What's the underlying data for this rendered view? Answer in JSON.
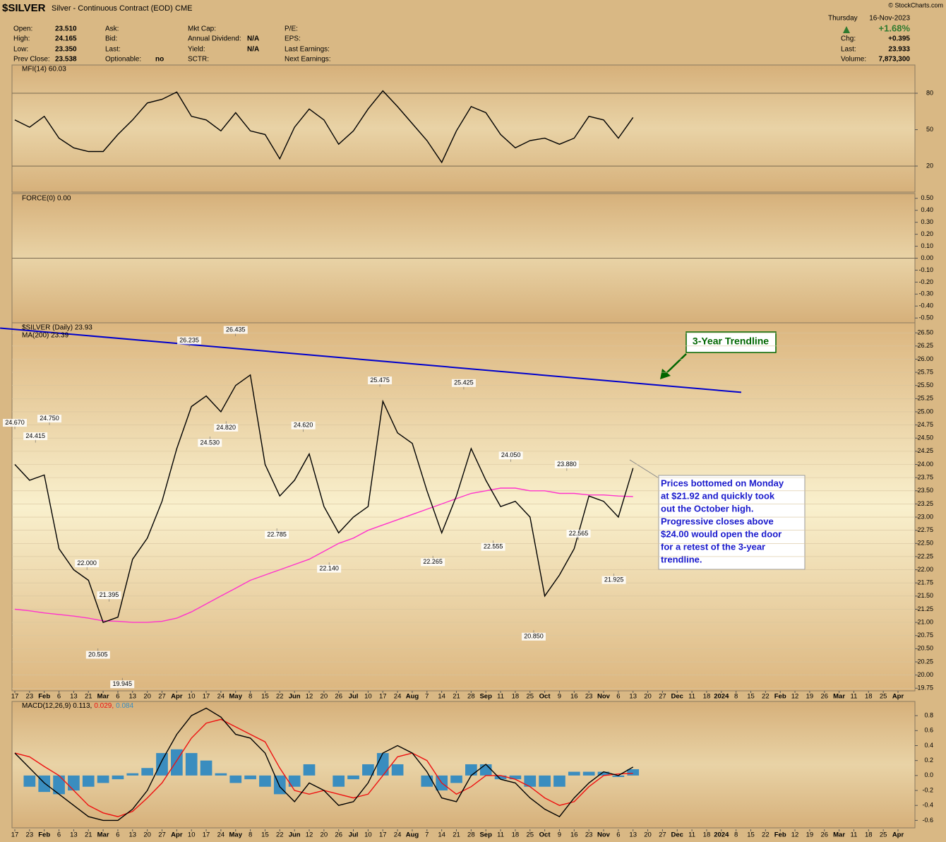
{
  "header": {
    "symbol": "$SILVER",
    "name": "Silver - Continuous Contract (EOD)",
    "exchange": "CME",
    "copyright": "© StockCharts.com",
    "day": "Thursday",
    "date": "16-Nov-2023",
    "change_pct": "+1.68%",
    "columns": [
      [
        {
          "label": "Open:",
          "value": "23.510"
        },
        {
          "label": "High:",
          "value": "24.165"
        },
        {
          "label": "Low:",
          "value": "23.350"
        },
        {
          "label": "Prev Close:",
          "value": "23.538"
        }
      ],
      [
        {
          "label": "Ask:"
        },
        {
          "label": "Bid:"
        },
        {
          "label": "Last:"
        },
        {
          "label": "Optionable:",
          "value": "no"
        }
      ],
      [
        {
          "label": "Mkt Cap:"
        },
        {
          "label": "Annual Dividend:",
          "value": "N/A"
        },
        {
          "label": "Yield:",
          "value": "N/A"
        },
        {
          "label": "SCTR:"
        }
      ],
      [
        {
          "label": "P/E:"
        },
        {
          "label": "EPS:"
        },
        {
          "label": "Last Earnings:"
        },
        {
          "label": "Next Earnings:"
        }
      ]
    ],
    "right": [
      {
        "label": "Chg:",
        "value": "+0.395"
      },
      {
        "label": "Last:",
        "value": "23.933"
      },
      {
        "label": "Volume:",
        "value": "7,873,300"
      }
    ]
  },
  "annotations": {
    "trendline_label": "3-Year Trendline",
    "note": [
      "Prices bottomed on Monday",
      "at $21.92 and quickly took",
      "out the October high.",
      "Progressive closes above",
      "$24.00 would open the door",
      "for a retest of the 3-year",
      "trendline."
    ]
  },
  "chart_data": [
    {
      "type": "line",
      "legend": [
        "MFI(14) 60.03"
      ],
      "ylim": [
        -1.5,
        103.3
      ],
      "yticks": [
        80,
        50,
        20
      ],
      "reference_lines": [
        80,
        20
      ],
      "series": [
        {
          "color": "#000000",
          "values": [
            58,
            52,
            61,
            43,
            35,
            32,
            32,
            46,
            58,
            72,
            75,
            81,
            61,
            58,
            49,
            64,
            49,
            46,
            26,
            52,
            67,
            58,
            38,
            49,
            67,
            82,
            69,
            55,
            41,
            23,
            49,
            69,
            64,
            46,
            35,
            41,
            43,
            38,
            43,
            61,
            58,
            43,
            60.03,
            null,
            null,
            null,
            null,
            null,
            null,
            null,
            null,
            null,
            null,
            null,
            null,
            null,
            null,
            null,
            null,
            null,
            null
          ]
        }
      ]
    },
    {
      "type": "line",
      "legend": [
        "FORCE(0) 0.00"
      ],
      "ylim": [
        -0.54,
        0.54
      ],
      "yticks": [
        {
          "value": 0.5,
          "label": "0.50"
        },
        {
          "value": 0.4,
          "label": "0.40"
        },
        {
          "value": 0.3,
          "label": "0.30"
        },
        {
          "value": 0.2,
          "label": "0.20"
        },
        {
          "value": 0.1,
          "label": "0.10"
        },
        {
          "value": 0,
          "label": "0.00"
        },
        {
          "value": -0.1,
          "label": "-0.10"
        },
        {
          "value": -0.2,
          "label": "-0.20"
        },
        {
          "value": -0.3,
          "label": "-0.30"
        },
        {
          "value": -0.4,
          "label": "-0.40"
        },
        {
          "value": -0.5,
          "label": "-0.50"
        }
      ],
      "reference_lines": [
        0
      ],
      "series": []
    },
    {
      "type": "line",
      "legend": [
        "$SILVER (Daily) 23.93",
        "MA(200) 23.39"
      ],
      "grid": true,
      "categories": [
        "17",
        "23",
        "Feb",
        "6",
        "13",
        "21",
        "Mar",
        "6",
        "13",
        "20",
        "27",
        "Apr",
        "10",
        "17",
        "24",
        "May",
        "8",
        "15",
        "22",
        "Jun",
        "12",
        "20",
        "26",
        "Jul",
        "10",
        "17",
        "24",
        "Aug",
        "7",
        "14",
        "21",
        "28",
        "Sep",
        "11",
        "18",
        "25",
        "Oct",
        "9",
        "16",
        "23",
        "Nov",
        "6",
        "13",
        "20",
        "27",
        "Dec",
        "11",
        "18",
        "2024",
        "8",
        "15",
        "22",
        "Feb",
        "12",
        "19",
        "26",
        "Mar",
        "11",
        "18",
        "25",
        "Apr"
      ],
      "ylim": [
        19.7,
        26.69
      ],
      "yticks": [
        {
          "value": 26.5,
          "label": "26.50"
        },
        26.25,
        {
          "value": 26,
          "label": "26.00"
        },
        25.75,
        {
          "value": 25.5,
          "label": "25.50"
        },
        25.25,
        {
          "value": 25,
          "label": "25.00"
        },
        24.75,
        {
          "value": 24.5,
          "label": "24.50"
        },
        24.25,
        {
          "value": 24,
          "label": "24.00"
        },
        23.75,
        {
          "value": 23.5,
          "label": "23.50"
        },
        23.25,
        {
          "value": 23,
          "label": "23.00"
        },
        22.75,
        {
          "value": 22.5,
          "label": "22.50"
        },
        22.25,
        {
          "value": 22,
          "label": "22.00"
        },
        21.75,
        {
          "value": 21.5,
          "label": "21.50"
        },
        21.25,
        {
          "value": 21,
          "label": "21.00"
        },
        20.75,
        {
          "value": 20.5,
          "label": "20.50"
        },
        20.25,
        {
          "value": 20,
          "label": "20.00"
        },
        19.75
      ],
      "series": [
        {
          "color": "#000000",
          "values": [
            24.0,
            23.7,
            23.8,
            22.4,
            22.0,
            21.8,
            21.0,
            21.1,
            22.2,
            22.6,
            23.3,
            24.3,
            25.1,
            25.3,
            25.0,
            25.5,
            25.7,
            24.0,
            23.4,
            23.7,
            24.2,
            23.2,
            22.7,
            23.0,
            23.2,
            25.2,
            24.6,
            24.4,
            23.5,
            22.7,
            23.4,
            24.3,
            23.7,
            23.2,
            23.3,
            23.0,
            21.5,
            21.9,
            22.4,
            23.4,
            23.3,
            23.0,
            23.93,
            null,
            null,
            null,
            null,
            null,
            null,
            null,
            null,
            null,
            null,
            null,
            null,
            null,
            null,
            null,
            null,
            null,
            null
          ]
        },
        {
          "color": "#ff33cc",
          "values": [
            21.25,
            21.22,
            21.18,
            21.15,
            21.12,
            21.08,
            21.03,
            21.02,
            21.0,
            21.0,
            21.02,
            21.08,
            21.2,
            21.35,
            21.5,
            21.65,
            21.8,
            21.9,
            22.0,
            22.1,
            22.2,
            22.35,
            22.5,
            22.6,
            22.75,
            22.85,
            22.95,
            23.05,
            23.15,
            23.25,
            23.35,
            23.45,
            23.5,
            23.55,
            23.55,
            23.5,
            23.5,
            23.45,
            23.45,
            23.42,
            23.42,
            23.4,
            23.39,
            null,
            null,
            null,
            null,
            null,
            null,
            null,
            null,
            null,
            null,
            null,
            null,
            null,
            null,
            null,
            null,
            null,
            null
          ]
        }
      ],
      "trendline": {
        "color": "#0000cc",
        "x": [
          -1.0,
          49.35
        ],
        "values": [
          26.59,
          25.37
        ]
      },
      "price_labels": {
        "x": [
          0,
          1.4,
          2.35,
          4.9,
          6.4,
          5.65,
          7.3,
          11.85,
          15.0,
          13.25,
          14.35,
          19.6,
          17.8,
          21.35,
          24.8,
          30.5,
          28.4,
          33.7,
          32.5,
          37.5,
          38.3,
          35.25,
          40.7
        ],
        "values": [
          24.67,
          24.415,
          24.75,
          22.0,
          21.395,
          20.505,
          19.945,
          26.235,
          26.435,
          24.53,
          24.82,
          24.62,
          22.785,
          22.14,
          25.475,
          25.425,
          22.265,
          24.05,
          22.555,
          23.88,
          22.565,
          20.85,
          21.925
        ],
        "value_labels": [
          "24.670",
          "24.415",
          "24.750",
          "22.000",
          "21.395",
          "20.505",
          "19.945",
          "26.235",
          "26.435",
          "24.530",
          "24.820",
          "24.620",
          "22.785",
          "22.140",
          "25.475",
          "25.425",
          "22.265",
          "24.050",
          "22.555",
          "23.880",
          "22.565",
          "20.850",
          "21.925"
        ]
      }
    },
    {
      "type": "line",
      "legend": [
        "MACD(12,26,9) 0.113,",
        "0.029,",
        "0.084"
      ],
      "categories": [
        "17",
        "23",
        "Feb",
        "6",
        "13",
        "21",
        "Mar",
        "6",
        "13",
        "20",
        "27",
        "Apr",
        "10",
        "17",
        "24",
        "May",
        "8",
        "15",
        "22",
        "Jun",
        "12",
        "20",
        "26",
        "Jul",
        "10",
        "17",
        "24",
        "Aug",
        "7",
        "14",
        "21",
        "28",
        "Sep",
        "11",
        "18",
        "25",
        "Oct",
        "9",
        "16",
        "23",
        "Nov",
        "6",
        "13",
        "20",
        "27",
        "Dec",
        "11",
        "18",
        "2024",
        "8",
        "15",
        "22",
        "Feb",
        "12",
        "19",
        "26",
        "Mar",
        "11",
        "18",
        "25",
        "Apr"
      ],
      "ylim": [
        -0.7,
        0.99
      ],
      "yticks": [
        0.8,
        0.6,
        0.4,
        0.2,
        {
          "value": 0,
          "label": "0.0"
        },
        -0.2,
        -0.4,
        -0.6
      ],
      "series": [
        {
          "color": "#000000",
          "values": [
            0.3,
            0.1,
            -0.1,
            -0.25,
            -0.4,
            -0.55,
            -0.6,
            -0.6,
            -0.45,
            -0.2,
            0.2,
            0.55,
            0.8,
            0.9,
            0.78,
            0.55,
            0.5,
            0.3,
            -0.15,
            -0.35,
            -0.1,
            -0.2,
            -0.4,
            -0.35,
            -0.1,
            0.3,
            0.4,
            0.3,
            0.05,
            -0.3,
            -0.35,
            0.0,
            0.15,
            -0.05,
            -0.1,
            -0.3,
            -0.45,
            -0.55,
            -0.3,
            -0.1,
            0.05,
            0.0,
            0.113,
            null,
            null,
            null,
            null,
            null,
            null,
            null,
            null,
            null,
            null,
            null,
            null,
            null,
            null,
            null,
            null,
            null,
            null
          ]
        },
        {
          "color": "#ee1111",
          "values": [
            0.3,
            0.25,
            0.12,
            0.0,
            -0.2,
            -0.4,
            -0.5,
            -0.55,
            -0.48,
            -0.3,
            -0.1,
            0.2,
            0.5,
            0.7,
            0.75,
            0.65,
            0.55,
            0.45,
            0.1,
            -0.2,
            -0.25,
            -0.2,
            -0.25,
            -0.3,
            -0.25,
            0.0,
            0.25,
            0.3,
            0.2,
            -0.1,
            -0.25,
            -0.15,
            0.0,
            0.0,
            -0.05,
            -0.15,
            -0.3,
            -0.4,
            -0.35,
            -0.15,
            0.0,
            0.02,
            0.029,
            null,
            null,
            null,
            null,
            null,
            null,
            null,
            null,
            null,
            null,
            null,
            null,
            null,
            null,
            null,
            null,
            null,
            null
          ]
        },
        {
          "type": "bar",
          "color": "#3a8dbf",
          "values": [
            0,
            -0.15,
            -0.22,
            -0.25,
            -0.2,
            -0.15,
            -0.1,
            -0.05,
            0.03,
            0.1,
            0.3,
            0.35,
            0.3,
            0.2,
            0.03,
            -0.1,
            -0.05,
            -0.15,
            -0.25,
            -0.15,
            0.15,
            0.0,
            -0.15,
            -0.05,
            0.15,
            0.3,
            0.15,
            0.0,
            -0.15,
            -0.2,
            -0.1,
            0.15,
            0.15,
            -0.05,
            -0.05,
            -0.15,
            -0.15,
            -0.15,
            0.05,
            0.05,
            0.05,
            -0.02,
            0.084,
            null,
            null,
            null,
            null,
            null,
            null,
            null,
            null,
            null,
            null,
            null,
            null,
            null,
            null,
            null,
            null,
            null,
            null
          ]
        }
      ]
    }
  ]
}
